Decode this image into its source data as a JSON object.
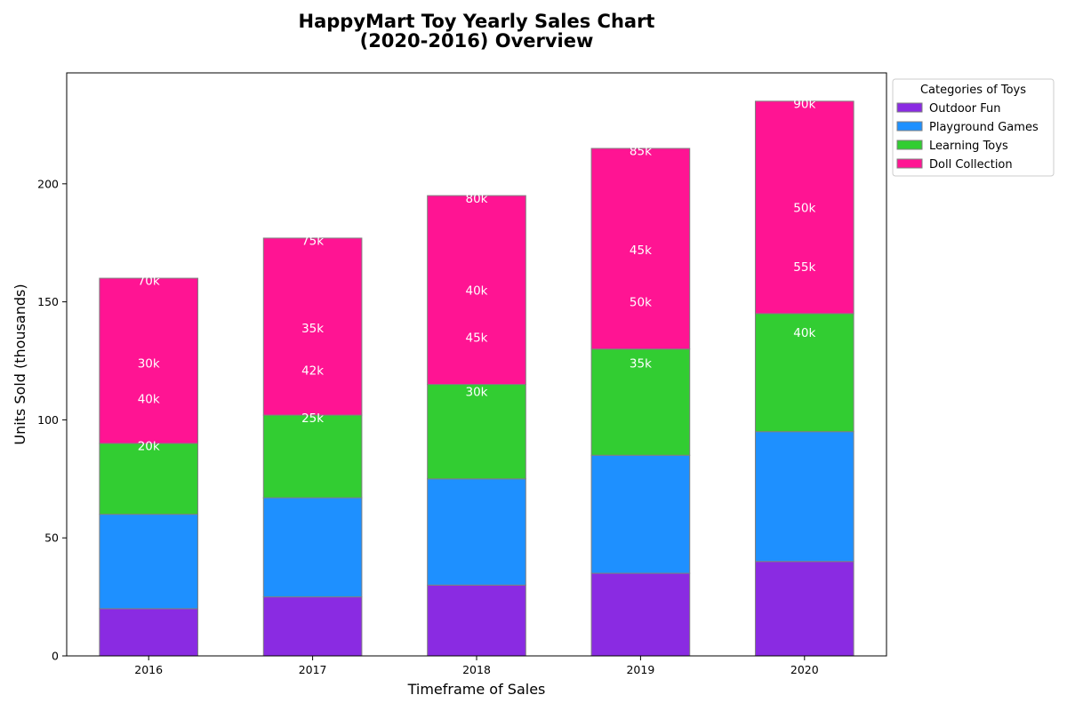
{
  "chart_data": {
    "type": "bar",
    "stacked": true,
    "title": "HappyMart Toy Yearly Sales Chart\n(2020-2016) Overview",
    "xlabel": "Timeframe of Sales",
    "ylabel": "Units Sold (thousands)",
    "ylim": [
      0,
      247
    ],
    "yticks": [
      0,
      50,
      100,
      150,
      200
    ],
    "grid": false,
    "categories": [
      "2016",
      "2017",
      "2018",
      "2019",
      "2020"
    ],
    "series": [
      {
        "name": "Outdoor Fun",
        "color": "#8A2BE2",
        "values": [
          20,
          25,
          30,
          35,
          40
        ]
      },
      {
        "name": "Playground Games",
        "color": "#1E90FF",
        "values": [
          40,
          42,
          45,
          50,
          55
        ]
      },
      {
        "name": "Learning Toys",
        "color": "#32CD32",
        "values": [
          30,
          35,
          40,
          45,
          50
        ]
      },
      {
        "name": "Doll Collection",
        "color": "#FF1493",
        "values": [
          70,
          75,
          80,
          85,
          90
        ]
      }
    ],
    "annotations": [
      {
        "category": "2016",
        "text": "70k",
        "y": 159
      },
      {
        "category": "2016",
        "text": "30k",
        "y": 124
      },
      {
        "category": "2016",
        "text": "40k",
        "y": 109
      },
      {
        "category": "2016",
        "text": "20k",
        "y": 89
      },
      {
        "category": "2017",
        "text": "75k",
        "y": 176
      },
      {
        "category": "2017",
        "text": "35k",
        "y": 139
      },
      {
        "category": "2017",
        "text": "42k",
        "y": 121
      },
      {
        "category": "2017",
        "text": "25k",
        "y": 101
      },
      {
        "category": "2018",
        "text": "80k",
        "y": 194
      },
      {
        "category": "2018",
        "text": "40k",
        "y": 155
      },
      {
        "category": "2018",
        "text": "45k",
        "y": 135
      },
      {
        "category": "2018",
        "text": "30k",
        "y": 112
      },
      {
        "category": "2019",
        "text": "85k",
        "y": 214
      },
      {
        "category": "2019",
        "text": "45k",
        "y": 172
      },
      {
        "category": "2019",
        "text": "50k",
        "y": 150
      },
      {
        "category": "2019",
        "text": "35k",
        "y": 124
      },
      {
        "category": "2020",
        "text": "90k",
        "y": 234
      },
      {
        "category": "2020",
        "text": "50k",
        "y": 190
      },
      {
        "category": "2020",
        "text": "55k",
        "y": 165
      },
      {
        "category": "2020",
        "text": "40k",
        "y": 137
      }
    ],
    "legend": {
      "title": "Categories of Toys",
      "placement": "outside-top-right"
    }
  }
}
